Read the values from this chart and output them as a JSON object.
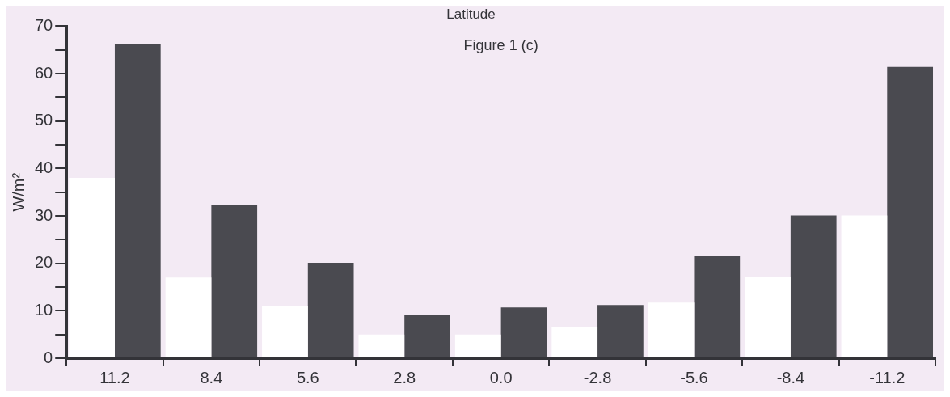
{
  "chart_data": {
    "type": "bar",
    "title": "Latitude",
    "ylabel": "W/m²",
    "annotations": [
      "Figure 1 (c)"
    ],
    "categories": [
      "11.2",
      "8.4",
      "5.6",
      "2.8",
      "0.0",
      "-2.8",
      "-5.6",
      "-8.4",
      "-11.2"
    ],
    "series": [
      {
        "color": "#ffffff",
        "values": [
          38,
          17,
          11,
          5,
          5,
          6.5,
          11.7,
          17.2,
          30.1
        ]
      },
      {
        "color": "#4a4a50",
        "values": [
          66.3,
          32.3,
          20.1,
          9.2,
          10.7,
          11.2,
          21.6,
          30.1,
          61.4
        ]
      }
    ],
    "ylim": [
      0,
      70
    ],
    "yticks": [
      0,
      {
        "value": 5,
        "label": null
      },
      10,
      {
        "value": 15,
        "label": null
      },
      20,
      {
        "value": 25,
        "label": null
      },
      30,
      {
        "value": 35,
        "label": null
      },
      40,
      {
        "value": 45,
        "label": null
      },
      50,
      {
        "value": 55,
        "label": null
      },
      60,
      {
        "value": 65,
        "label": null
      },
      70
    ],
    "grid": false,
    "legend": false
  }
}
